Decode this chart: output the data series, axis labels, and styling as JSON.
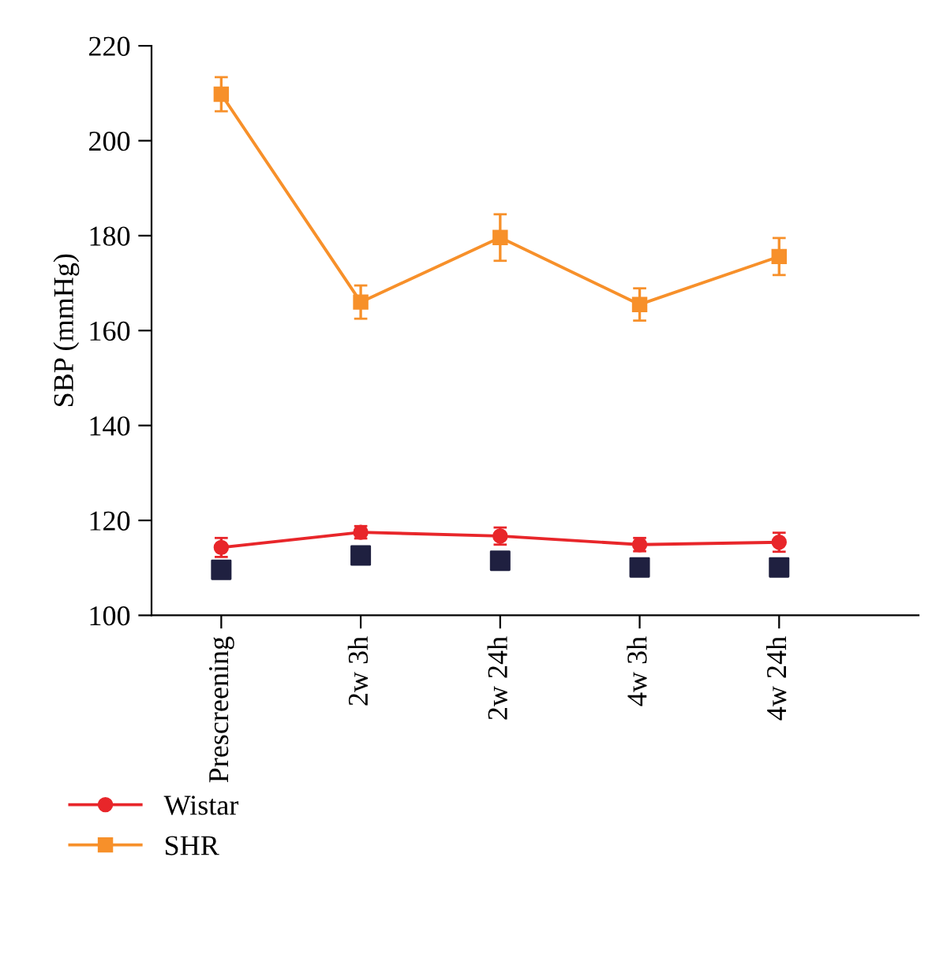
{
  "chart_data": {
    "type": "line",
    "ylabel": "SBP (mmHg)",
    "categories": [
      "Prescreening",
      "2w 3h",
      "2w 24h",
      "4w 3h",
      "4w 24h"
    ],
    "series": [
      {
        "name": "Wistar",
        "color": "#e8262a",
        "marker": "circle",
        "values": [
          114.3,
          117.5,
          116.7,
          114.9,
          115.4
        ],
        "errors": [
          2.0,
          1.3,
          1.8,
          1.4,
          2.0
        ]
      },
      {
        "name": "SHR",
        "color": "#f7902a",
        "marker": "square",
        "values": [
          209.8,
          166.0,
          179.6,
          165.5,
          175.6
        ],
        "errors": [
          3.6,
          3.5,
          4.9,
          3.4,
          3.9
        ]
      },
      {
        "type": "scatter",
        "color": "#1f2040",
        "marker": "square",
        "values": [
          109.6,
          112.6,
          111.5,
          110.1,
          110.1
        ]
      }
    ],
    "ylim": [
      100,
      220
    ],
    "yticks": [
      100,
      120,
      140,
      160,
      180,
      200,
      220
    ],
    "grid": false,
    "legend": "bottom left"
  }
}
